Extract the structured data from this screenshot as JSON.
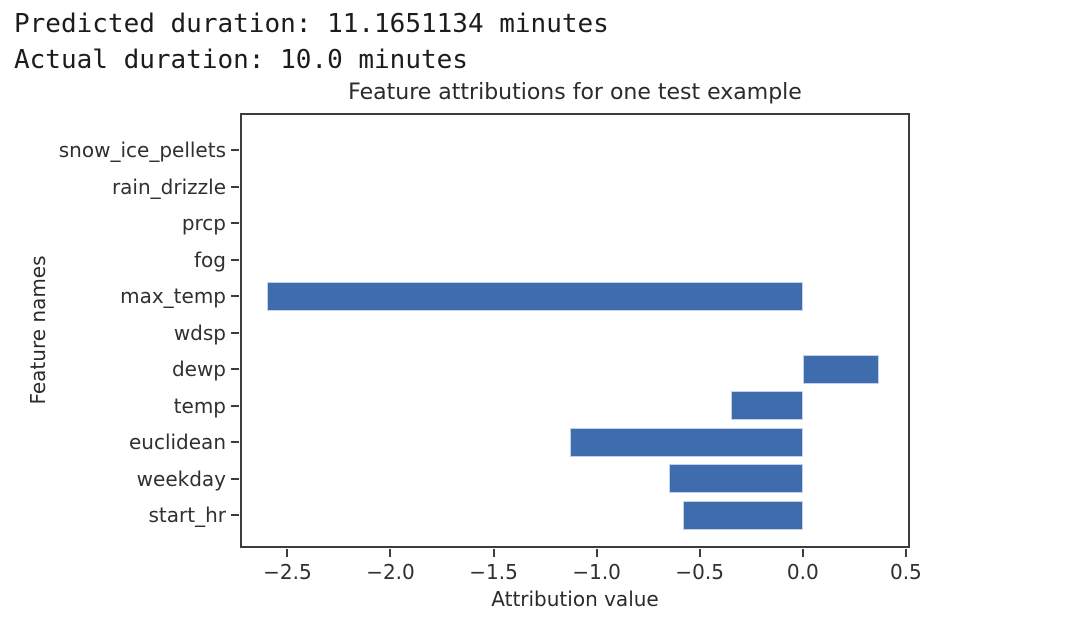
{
  "console": {
    "line1": "Predicted duration: 11.1651134 minutes",
    "line2": "Actual duration: 10.0 minutes"
  },
  "chart_data": {
    "type": "bar",
    "orientation": "horizontal",
    "title": "Feature attributions for one test example",
    "xlabel": "Attribution value",
    "ylabel": "Feature names",
    "categories": [
      "snow_ice_pellets",
      "rain_drizzle",
      "prcp",
      "fog",
      "max_temp",
      "wdsp",
      "dewp",
      "temp",
      "euclidean",
      "weekday",
      "start_hr"
    ],
    "values": [
      0,
      0,
      0,
      0,
      -2.6,
      0,
      0.37,
      -0.35,
      -1.13,
      -0.65,
      -0.58
    ],
    "xticks": [
      -2.5,
      -2.0,
      -1.5,
      -1.0,
      -0.5,
      0.0,
      0.5
    ],
    "xlim": [
      -2.73,
      0.52
    ],
    "grid": false,
    "legend": "none",
    "bar_color": "#3E6CAC",
    "bar_edge_color": "#C3D2E8",
    "axis_color": "#3C3C3C"
  }
}
